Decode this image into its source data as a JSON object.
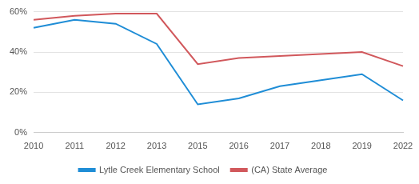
{
  "chart_data": {
    "type": "line",
    "categories": [
      "2010",
      "2011",
      "2012",
      "2013",
      "2015",
      "2016",
      "2017",
      "2018",
      "2019",
      "2022"
    ],
    "series": [
      {
        "name": "Lytle Creek Elementary School",
        "color": "#1f8dd6",
        "values": [
          52,
          56,
          54,
          44,
          14,
          17,
          23,
          26,
          29,
          16
        ]
      },
      {
        "name": "(CA) State Average",
        "color": "#d1585c",
        "values": [
          56,
          58,
          59,
          59,
          34,
          37,
          38,
          39,
          40,
          33
        ]
      }
    ],
    "ylim": [
      0,
      60
    ],
    "yticks": [
      {
        "value": 0,
        "label": "0%"
      },
      {
        "value": 20,
        "label": "20%"
      },
      {
        "value": 40,
        "label": "40%"
      },
      {
        "value": 60,
        "label": "60%"
      }
    ],
    "grid": true,
    "legend": "bottom"
  }
}
